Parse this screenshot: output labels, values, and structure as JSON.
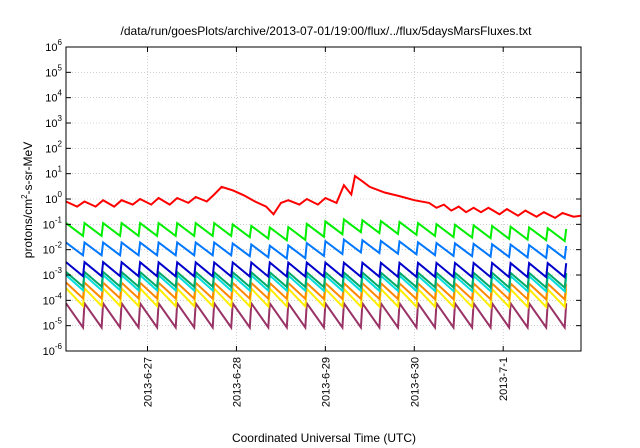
{
  "chart_data": {
    "type": "line",
    "title": "/data/run/goesPlots/archive/2013-07-01/19:00/flux/../flux/5daysMarsFluxes.txt",
    "xlabel": "Coordinated Universal Time (UTC)",
    "ylabel": "protons/cm2-s-sr-MeV",
    "y_scale": "log",
    "ylim": [
      "1e-6",
      "1e6"
    ],
    "y_ticks": [
      {
        "base": "10",
        "exp": "-6"
      },
      {
        "base": "10",
        "exp": "-5"
      },
      {
        "base": "10",
        "exp": "-4"
      },
      {
        "base": "10",
        "exp": "-3"
      },
      {
        "base": "10",
        "exp": "-2"
      },
      {
        "base": "10",
        "exp": "-1"
      },
      {
        "base": "10",
        "exp": "0"
      },
      {
        "base": "10",
        "exp": "1"
      },
      {
        "base": "10",
        "exp": "2"
      },
      {
        "base": "10",
        "exp": "3"
      },
      {
        "base": "10",
        "exp": "4"
      },
      {
        "base": "10",
        "exp": "5"
      },
      {
        "base": "10",
        "exp": "6"
      }
    ],
    "xlim": [
      "2013-06-26 02:00",
      "2013-07-01 21:00"
    ],
    "x_ticks": [
      "2013-6-27",
      "2013-6-28",
      "2013-6-29",
      "2013-6-30",
      "2013-7-1"
    ],
    "grid": true,
    "series": [
      {
        "color": "#ff0000",
        "label_left": "",
        "points": [
          [
            "2013-06-26 02:00",
            0.8
          ],
          [
            "2013-06-26 05:00",
            0.5
          ],
          [
            "2013-06-26 07:00",
            0.8
          ],
          [
            "2013-06-26 10:00",
            0.5
          ],
          [
            "2013-06-26 12:00",
            0.9
          ],
          [
            "2013-06-26 15:00",
            0.5
          ],
          [
            "2013-06-26 17:00",
            0.9
          ],
          [
            "2013-06-26 20:00",
            0.6
          ],
          [
            "2013-06-26 22:00",
            1.0
          ],
          [
            "2013-06-27 01:00",
            0.6
          ],
          [
            "2013-06-27 03:00",
            1.1
          ],
          [
            "2013-06-27 06:00",
            0.6
          ],
          [
            "2013-06-27 08:00",
            1.1
          ],
          [
            "2013-06-27 11:00",
            0.7
          ],
          [
            "2013-06-27 13:00",
            1.2
          ],
          [
            "2013-06-27 16:00",
            0.8
          ],
          [
            "2013-06-27 18:00",
            1.5
          ],
          [
            "2013-06-27 20:00",
            3.0
          ],
          [
            "2013-06-27 23:00",
            2.2
          ],
          [
            "2013-06-28 02:00",
            1.4
          ],
          [
            "2013-06-28 05:00",
            0.8
          ],
          [
            "2013-06-28 08:00",
            0.5
          ],
          [
            "2013-06-28 10:00",
            0.25
          ],
          [
            "2013-06-28 12:00",
            0.7
          ],
          [
            "2013-06-28 14:00",
            0.9
          ],
          [
            "2013-06-28 17:00",
            0.6
          ],
          [
            "2013-06-28 19:00",
            1.0
          ],
          [
            "2013-06-28 22:00",
            0.6
          ],
          [
            "2013-06-29 00:00",
            1.1
          ],
          [
            "2013-06-29 03:00",
            0.7
          ],
          [
            "2013-06-29 05:00",
            3.5
          ],
          [
            "2013-06-29 07:00",
            1.5
          ],
          [
            "2013-06-29 08:00",
            8.0
          ],
          [
            "2013-06-29 10:00",
            5.0
          ],
          [
            "2013-06-29 12:00",
            3.0
          ],
          [
            "2013-06-29 16:00",
            1.8
          ],
          [
            "2013-06-29 20:00",
            1.3
          ],
          [
            "2013-06-30 00:00",
            0.9
          ],
          [
            "2013-06-30 04:00",
            0.7
          ],
          [
            "2013-06-30 06:00",
            0.45
          ],
          [
            "2013-06-30 08:00",
            0.6
          ],
          [
            "2013-06-30 10:00",
            0.35
          ],
          [
            "2013-06-30 12:00",
            0.5
          ],
          [
            "2013-06-30 14:00",
            0.3
          ],
          [
            "2013-06-30 16:00",
            0.45
          ],
          [
            "2013-06-30 18:00",
            0.3
          ],
          [
            "2013-06-30 20:00",
            0.45
          ],
          [
            "2013-06-30 23:00",
            0.25
          ],
          [
            "2013-07-01 01:00",
            0.4
          ],
          [
            "2013-07-01 04:00",
            0.22
          ],
          [
            "2013-07-01 06:00",
            0.35
          ],
          [
            "2013-07-01 09:00",
            0.2
          ],
          [
            "2013-07-01 11:00",
            0.3
          ],
          [
            "2013-07-01 14:00",
            0.18
          ],
          [
            "2013-07-01 16:00",
            0.28
          ],
          [
            "2013-07-01 19:00",
            0.2
          ],
          [
            "2013-07-01 21:00",
            0.22
          ]
        ]
      },
      {
        "color": "#00ee00",
        "label_left": "",
        "base": 0.035,
        "amp": 3.2,
        "period_hours": 5,
        "envelope": [
          [
            "2013-06-26 02:00",
            1.0
          ],
          [
            "2013-06-27 18:00",
            1.0
          ],
          [
            "2013-06-28 12:00",
            0.6
          ],
          [
            "2013-06-29 05:00",
            1.4
          ],
          [
            "2013-06-30 06:00",
            0.9
          ],
          [
            "2013-07-01 21:00",
            0.55
          ]
        ]
      },
      {
        "color": "#0077ff",
        "label_left": "",
        "base": 0.006,
        "amp": 3.2,
        "period_hours": 5,
        "envelope": [
          [
            "2013-06-26 02:00",
            1.0
          ],
          [
            "2013-06-27 18:00",
            1.0
          ],
          [
            "2013-06-28 12:00",
            0.7
          ],
          [
            "2013-06-29 05:00",
            1.3
          ],
          [
            "2013-06-30 06:00",
            0.95
          ],
          [
            "2013-07-01 21:00",
            0.7
          ]
        ]
      },
      {
        "color": "#0000cc",
        "label_left": "",
        "base": 0.0009,
        "amp": 3.6,
        "period_hours": 5,
        "envelope": [
          [
            "2013-06-26 02:00",
            1.0
          ],
          [
            "2013-07-01 21:00",
            0.9
          ]
        ]
      },
      {
        "color": "#00aa66",
        "label_left": "",
        "base": 0.00035,
        "amp": 3.8,
        "period_hours": 5,
        "envelope": [
          [
            "2013-06-26 02:00",
            1.0
          ],
          [
            "2013-07-01 21:00",
            0.9
          ]
        ]
      },
      {
        "color": "#00dddd",
        "label_left": "",
        "base": 0.00025,
        "amp": 4.0,
        "period_hours": 5,
        "envelope": [
          [
            "2013-06-26 02:00",
            1.0
          ],
          [
            "2013-07-01 21:00",
            0.9
          ]
        ]
      },
      {
        "color": "#ff8800",
        "label_left": "",
        "base": 0.00012,
        "amp": 4.2,
        "period_hours": 5,
        "envelope": [
          [
            "2013-06-26 02:00",
            1.0
          ],
          [
            "2013-07-01 21:00",
            0.9
          ]
        ]
      },
      {
        "color": "#ffee00",
        "label_left": "",
        "base": 6e-05,
        "amp": 5.0,
        "period_hours": 5,
        "envelope": [
          [
            "2013-06-26 02:00",
            1.0
          ],
          [
            "2013-07-01 21:00",
            0.9
          ]
        ]
      },
      {
        "color": "#993366",
        "label_left": "",
        "base": 8.5e-06,
        "amp": 9.0,
        "period_hours": 5,
        "envelope": [
          [
            "2013-06-26 02:00",
            1.0
          ],
          [
            "2013-07-01 21:00",
            1.0
          ]
        ]
      }
    ]
  }
}
